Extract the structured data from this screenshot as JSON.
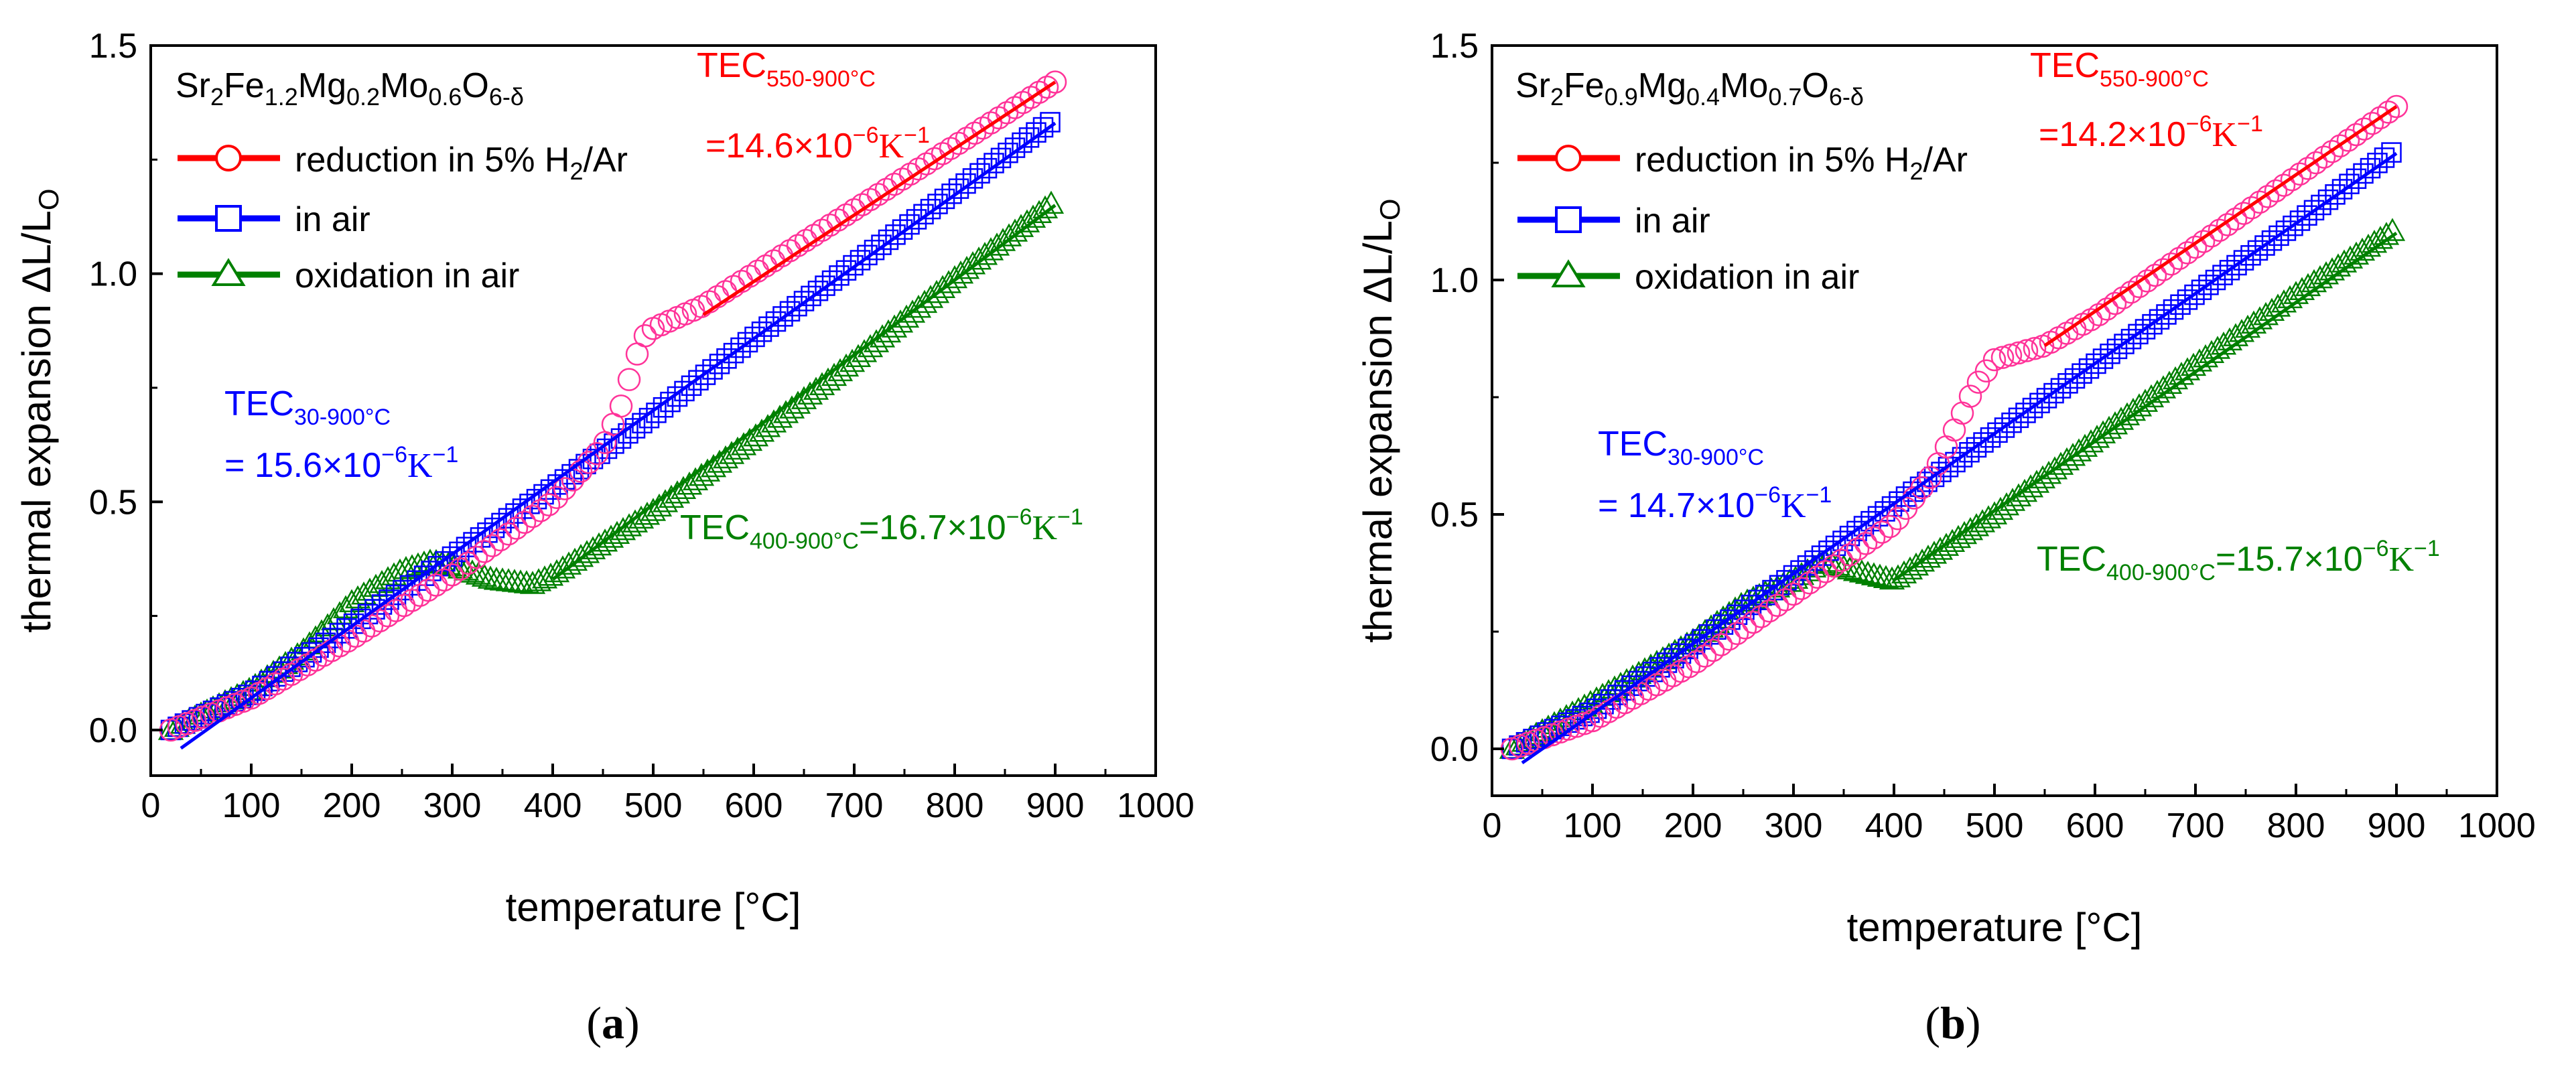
{
  "panels": [
    {
      "panel_label": "a",
      "composition": {
        "base": "Sr",
        "s1": "2",
        "el2": "Fe",
        "s2": "1.2",
        "el3": "Mg",
        "s3": "0.2",
        "el4": "Mo",
        "s4": "0.6",
        "el5": "O",
        "s5": "6-δ"
      },
      "annotations": {
        "red_top": {
          "main": "TEC",
          "sub": "550-900°C"
        },
        "red_bottom": {
          "prefix": "=14.6×10",
          "sup": "−6",
          "unit": "K",
          "unit_sup": "−1"
        },
        "blue_top": {
          "main": "TEC",
          "sub": "30-900°C"
        },
        "blue_bottom": {
          "prefix": "= 15.6×10",
          "sup": "−6",
          "unit": "K",
          "unit_sup": "−1"
        },
        "green": {
          "main": "TEC",
          "sub": "400-900°C",
          "value": "=16.7×10",
          "sup": "−6",
          "unit": "K",
          "unit_sup": "−1"
        }
      }
    },
    {
      "panel_label": "b",
      "composition": {
        "base": "Sr",
        "s1": "2",
        "el2": "Fe",
        "s2": "0.9",
        "el3": "Mg",
        "s3": "0.4",
        "el4": "Mo",
        "s4": "0.7",
        "el5": "O",
        "s5": "6-δ"
      },
      "annotations": {
        "red_top": {
          "main": "TEC",
          "sub": "550-900°C"
        },
        "red_bottom": {
          "prefix": "=14.2×10",
          "sup": "−6",
          "unit": "K",
          "unit_sup": "−1"
        },
        "blue_top": {
          "main": "TEC",
          "sub": "30-900°C"
        },
        "blue_bottom": {
          "prefix": "= 14.7×10",
          "sup": "−6",
          "unit": "K",
          "unit_sup": "−1"
        },
        "green": {
          "main": "TEC",
          "sub": "400-900°C",
          "value": "=15.7×10",
          "sup": "−6",
          "unit": "K",
          "unit_sup": "−1"
        }
      }
    }
  ],
  "legend": [
    {
      "pre": "reduction in 5% H",
      "sub": "2",
      "post": "/Ar"
    },
    {
      "pre": "in air",
      "sub": "",
      "post": ""
    },
    {
      "pre": "oxidation in air",
      "sub": "",
      "post": ""
    }
  ],
  "colors": {
    "reduction": "#ff0000",
    "reduction_marker": "#ff3399",
    "air": "#0000ff",
    "oxidation": "#008000",
    "axis": "#000000"
  },
  "chart_data": [
    {
      "type": "scatter",
      "xlabel": "temperature [°C]",
      "ylabel": "thermal expansion ΔL/L",
      "ylabel_sub": "O",
      "xlim": [
        0,
        1000
      ],
      "ylim": [
        -0.1,
        1.5
      ],
      "xticks": [
        0,
        100,
        200,
        300,
        400,
        500,
        600,
        700,
        800,
        900,
        1000
      ],
      "yticks": [
        0.0,
        0.5,
        1.0,
        1.5
      ],
      "ytick_labels": [
        "0.0",
        "0.5",
        "1.0",
        "1.5"
      ],
      "legend_position": "top-left",
      "series": [
        {
          "name": "reduction in 5% H2/Ar",
          "marker": "circle",
          "x": [
            20,
            100,
            200,
            300,
            400,
            450,
            470,
            480,
            490,
            500,
            550,
            600,
            700,
            800,
            900
          ],
          "y": [
            0.0,
            0.07,
            0.2,
            0.34,
            0.5,
            0.62,
            0.72,
            0.8,
            0.86,
            0.88,
            0.93,
            1.0,
            1.14,
            1.28,
            1.42
          ]
        },
        {
          "name": "in air",
          "marker": "square",
          "x": [
            20,
            100,
            200,
            300,
            400,
            500,
            600,
            700,
            800,
            900
          ],
          "y": [
            0.0,
            0.08,
            0.23,
            0.38,
            0.53,
            0.69,
            0.86,
            1.02,
            1.18,
            1.34
          ]
        },
        {
          "name": "oxidation in air",
          "marker": "triangle",
          "x": [
            20,
            100,
            150,
            200,
            250,
            280,
            300,
            340,
            380,
            400,
            500,
            600,
            700,
            800,
            900
          ],
          "y": [
            0.0,
            0.09,
            0.17,
            0.28,
            0.35,
            0.37,
            0.36,
            0.33,
            0.32,
            0.34,
            0.48,
            0.64,
            0.81,
            0.99,
            1.16
          ]
        }
      ],
      "fit_lines": [
        {
          "name": "reduction fit",
          "x": [
            550,
            900
          ],
          "y": [
            0.91,
            1.42
          ]
        },
        {
          "name": "air fit",
          "x": [
            30,
            900
          ],
          "y": [
            -0.04,
            1.33
          ]
        },
        {
          "name": "oxidation fit",
          "x": [
            400,
            900
          ],
          "y": [
            0.33,
            1.15
          ]
        }
      ]
    },
    {
      "type": "scatter",
      "xlabel": "temperature [°C]",
      "ylabel": "thermal expansion ΔL/L",
      "ylabel_sub": "O",
      "xlim": [
        0,
        1000
      ],
      "ylim": [
        -0.1,
        1.5
      ],
      "xticks": [
        0,
        100,
        200,
        300,
        400,
        500,
        600,
        700,
        800,
        900,
        1000
      ],
      "yticks": [
        0.0,
        0.5,
        1.0,
        1.5
      ],
      "ytick_labels": [
        "0.0",
        "0.5",
        "1.0",
        "1.5"
      ],
      "legend_position": "top-left",
      "series": [
        {
          "name": "reduction in 5% H2/Ar",
          "marker": "circle",
          "x": [
            20,
            100,
            200,
            300,
            400,
            440,
            460,
            480,
            500,
            550,
            600,
            700,
            800,
            900
          ],
          "y": [
            0.0,
            0.06,
            0.18,
            0.33,
            0.48,
            0.59,
            0.68,
            0.77,
            0.83,
            0.86,
            0.92,
            1.07,
            1.22,
            1.37
          ]
        },
        {
          "name": "in air",
          "marker": "square",
          "x": [
            20,
            100,
            200,
            300,
            400,
            500,
            600,
            700,
            800,
            900
          ],
          "y": [
            0.0,
            0.08,
            0.22,
            0.37,
            0.52,
            0.67,
            0.82,
            0.97,
            1.12,
            1.28
          ]
        },
        {
          "name": "oxidation in air",
          "marker": "triangle",
          "x": [
            20,
            100,
            200,
            250,
            300,
            330,
            360,
            400,
            500,
            600,
            700,
            800,
            900
          ],
          "y": [
            0.0,
            0.1,
            0.23,
            0.31,
            0.36,
            0.4,
            0.38,
            0.36,
            0.5,
            0.66,
            0.82,
            0.97,
            1.11
          ]
        }
      ],
      "fit_lines": [
        {
          "name": "reduction fit",
          "x": [
            550,
            900
          ],
          "y": [
            0.86,
            1.37
          ]
        },
        {
          "name": "air fit",
          "x": [
            30,
            900
          ],
          "y": [
            -0.03,
            1.27
          ]
        },
        {
          "name": "oxidation fit",
          "x": [
            400,
            900
          ],
          "y": [
            0.36,
            1.1
          ]
        }
      ]
    }
  ]
}
